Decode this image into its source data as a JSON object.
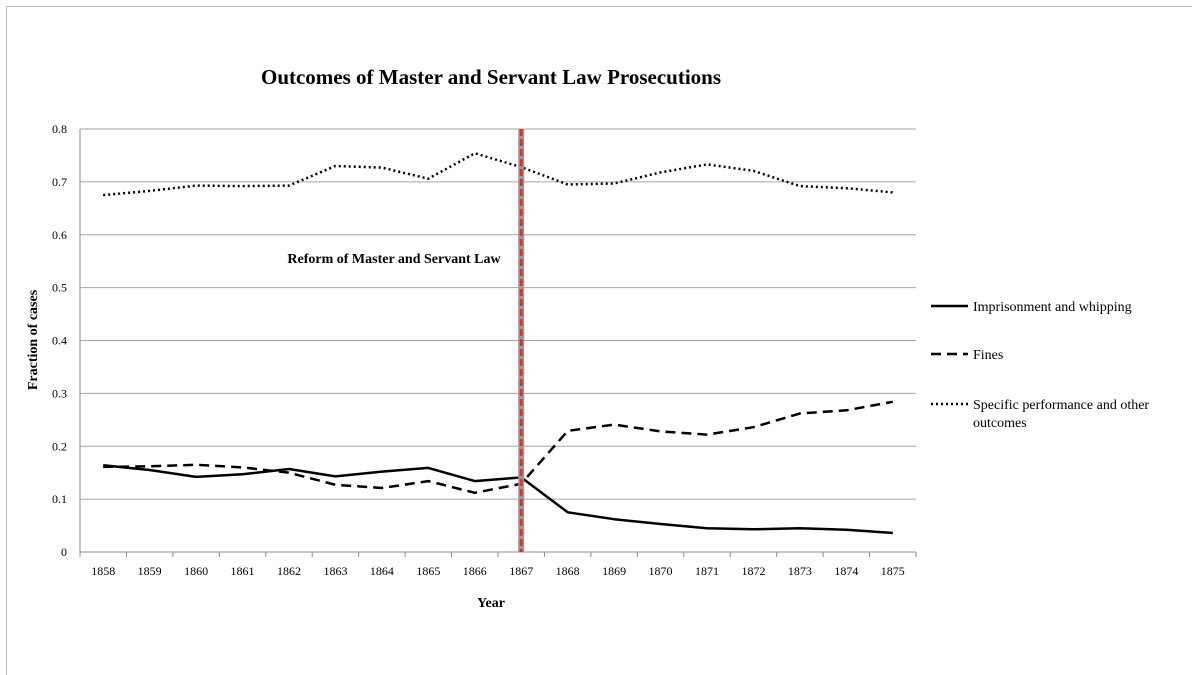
{
  "chart_data": {
    "type": "line",
    "title": "Outcomes of Master and Servant Law Prosecutions",
    "xlabel": "Year",
    "ylabel": "Fraction of cases",
    "categories": [
      "1858",
      "1859",
      "1860",
      "1861",
      "1862",
      "1863",
      "1864",
      "1865",
      "1866",
      "1867",
      "1868",
      "1869",
      "1870",
      "1871",
      "1872",
      "1873",
      "1874",
      "1875"
    ],
    "ylim": [
      0,
      0.8
    ],
    "yticks": [
      "0",
      "0.1",
      "0.2",
      "0.3",
      "0.4",
      "0.5",
      "0.6",
      "0.7",
      "0.8"
    ],
    "grid": true,
    "legend_position": "right",
    "series": [
      {
        "name": "Imprisonment and whipping",
        "style": "solid",
        "values": [
          0.164,
          0.155,
          0.142,
          0.147,
          0.157,
          0.143,
          0.152,
          0.159,
          0.134,
          0.141,
          0.075,
          0.062,
          0.053,
          0.045,
          0.043,
          0.045,
          0.042,
          0.036
        ]
      },
      {
        "name": "Fines",
        "style": "dashed",
        "values": [
          0.161,
          0.162,
          0.165,
          0.16,
          0.15,
          0.127,
          0.121,
          0.134,
          0.112,
          0.129,
          0.229,
          0.241,
          0.228,
          0.222,
          0.236,
          0.262,
          0.268,
          0.284
        ]
      },
      {
        "name": "Specific performance and other outcomes",
        "style": "dotted",
        "values": [
          0.675,
          0.683,
          0.693,
          0.692,
          0.693,
          0.73,
          0.727,
          0.706,
          0.754,
          0.728,
          0.695,
          0.697,
          0.718,
          0.733,
          0.721,
          0.692,
          0.688,
          0.68
        ]
      }
    ],
    "reference_line": {
      "x": "1867",
      "color": "#d9362b",
      "label": "Reform of Master and Servant Law"
    }
  }
}
